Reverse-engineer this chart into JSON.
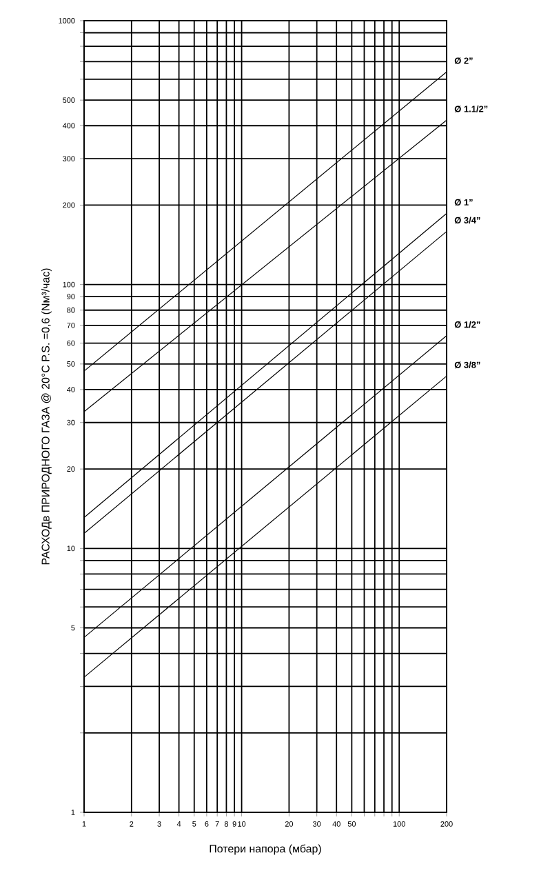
{
  "chart_data": {
    "type": "line",
    "xlabel": "Потери напора (мбар)",
    "ylabel": "РАСХОДв ПРИРОДНОГО ГАЗА @ 20°C  P.S. =0,6 (Nм³/час)",
    "x": [
      1,
      200
    ],
    "series": [
      {
        "name": "Ø 2”",
        "color": "#000000",
        "values": [
          47,
          640
        ]
      },
      {
        "name": "Ø 1.1/2”",
        "color": "#000000",
        "values": [
          33,
          420
        ]
      },
      {
        "name": "Ø 1”",
        "color": "#000000",
        "values": [
          13.1,
          186
        ]
      },
      {
        "name": "Ø 3/4”",
        "color": "#000000",
        "values": [
          11.4,
          159
        ]
      },
      {
        "name": "Ø 1/2”",
        "color": "#000000",
        "values": [
          4.6,
          64
        ]
      },
      {
        "name": "Ø 3/8”",
        "color": "#000000",
        "values": [
          3.25,
          45
        ]
      }
    ],
    "log": "xy",
    "xlim": [
      1,
      200
    ],
    "ylim": [
      1,
      1000
    ],
    "xticks": [
      1,
      2,
      3,
      4,
      5,
      6,
      7,
      8,
      9,
      10,
      20,
      30,
      40,
      50,
      {
        "value": 60,
        "label": null
      },
      {
        "value": 70,
        "label": null
      },
      {
        "value": 80,
        "label": null
      },
      {
        "value": 90,
        "label": null
      },
      100,
      200
    ],
    "yticks": [
      1,
      {
        "value": 2,
        "label": null
      },
      {
        "value": 3,
        "label": null
      },
      {
        "value": 4,
        "label": null
      },
      5,
      {
        "value": 6,
        "label": null
      },
      {
        "value": 7,
        "label": null
      },
      {
        "value": 8,
        "label": null
      },
      {
        "value": 9,
        "label": null
      },
      10,
      20,
      30,
      40,
      50,
      60,
      70,
      80,
      90,
      100,
      200,
      300,
      400,
      500,
      {
        "value": 600,
        "label": null
      },
      {
        "value": 700,
        "label": null
      },
      {
        "value": 800,
        "label": null
      },
      {
        "value": 900,
        "label": null
      },
      1000
    ],
    "grid": true,
    "line_style": "solid",
    "marker": "none"
  }
}
